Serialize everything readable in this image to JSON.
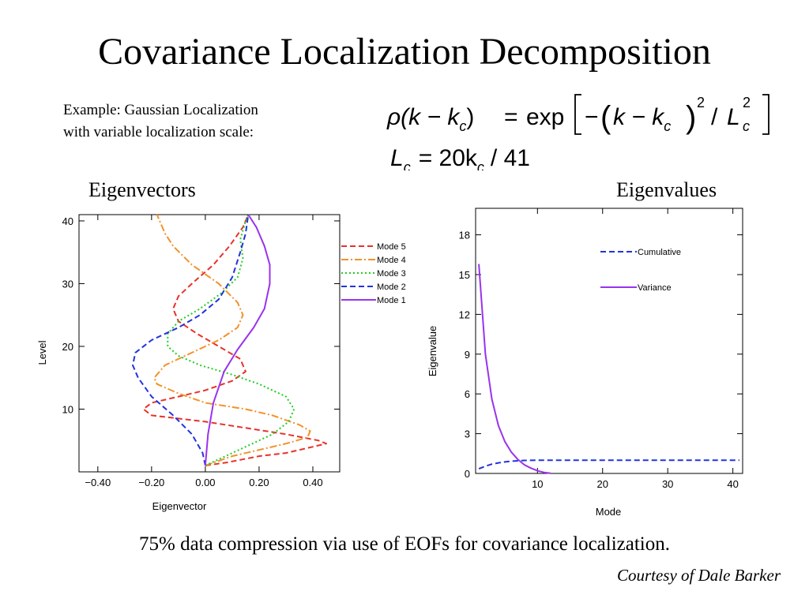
{
  "slide": {
    "title": "Covariance Localization Decomposition",
    "example_line1": "Example: Gaussian Localization",
    "example_line2": "with variable localization scale:",
    "label_left": "Eigenvectors",
    "label_right": "Eigenvalues",
    "caption": "75% data compression via use of EOFs for covariance localization.",
    "credit": "Courtesy of Dale Barker"
  },
  "formula": {
    "lhs": "ρ(k − k",
    "lhs_sub": "c",
    "lhs_close": ")",
    "eq": "=",
    "exp": "exp",
    "inner_minus": "−",
    "inner_k": "k − k",
    "inner_sub": "c",
    "sq": "2",
    "slash": "/",
    "L": "L",
    "L_sub": "c",
    "L_sup": "2",
    "line2": "L",
    "line2_sub": "c",
    "line2_rhs": "= 20k",
    "line2_sub2": "c",
    "line2_tail": "/ 41"
  },
  "chart_data": [
    {
      "type": "line",
      "xlabel": "Eigenvector",
      "ylabel": "Level",
      "xlim": [
        -0.47,
        0.5
      ],
      "ylim": [
        0,
        41
      ],
      "x_ticks": [
        -0.4,
        -0.2,
        0.0,
        0.2,
        0.4
      ],
      "x_tick_labels": [
        "−0.40",
        "−0.20",
        "0.00",
        "0.20",
        "0.40"
      ],
      "y_ticks": [
        10,
        20,
        30,
        40
      ],
      "y_tick_labels": [
        "10",
        "20",
        "30",
        "40"
      ],
      "legend_position": "right",
      "series": [
        {
          "name": "Mode 5",
          "color": "#e8312a",
          "dash": "7,4",
          "points": [
            [
              0,
              1
            ],
            [
              0.08,
              1.5
            ],
            [
              0.2,
              2.5
            ],
            [
              0.3,
              3
            ],
            [
              0.38,
              3.8
            ],
            [
              0.45,
              4.5
            ],
            [
              0.42,
              5
            ],
            [
              0.3,
              6
            ],
            [
              0.15,
              7
            ],
            [
              0.0,
              8
            ],
            [
              -0.1,
              8.5
            ],
            [
              -0.2,
              9
            ],
            [
              -0.23,
              10
            ],
            [
              -0.2,
              11
            ],
            [
              -0.1,
              12
            ],
            [
              0.0,
              13
            ],
            [
              0.1,
              14.5
            ],
            [
              0.15,
              16
            ],
            [
              0.13,
              18
            ],
            [
              0.05,
              20
            ],
            [
              -0.03,
              22
            ],
            [
              -0.1,
              24
            ],
            [
              -0.12,
              26
            ],
            [
              -0.1,
              28
            ],
            [
              -0.05,
              30
            ],
            [
              0.03,
              33
            ],
            [
              0.09,
              36
            ],
            [
              0.14,
              39
            ],
            [
              0.16,
              41
            ]
          ]
        },
        {
          "name": "Mode 4",
          "color": "#f2922a",
          "dash": "9,3,2,3",
          "points": [
            [
              0,
              1
            ],
            [
              0.1,
              2.5
            ],
            [
              0.2,
              3.5
            ],
            [
              0.3,
              4.5
            ],
            [
              0.38,
              5.5
            ],
            [
              0.39,
              6.5
            ],
            [
              0.35,
              7.5
            ],
            [
              0.25,
              9
            ],
            [
              0.15,
              10
            ],
            [
              0.0,
              11
            ],
            [
              -0.1,
              12.5
            ],
            [
              -0.18,
              14
            ],
            [
              -0.19,
              15
            ],
            [
              -0.15,
              17
            ],
            [
              -0.05,
              19
            ],
            [
              0.05,
              21
            ],
            [
              0.12,
              23
            ],
            [
              0.14,
              25
            ],
            [
              0.12,
              27
            ],
            [
              0.05,
              30
            ],
            [
              -0.05,
              33
            ],
            [
              -0.12,
              36
            ],
            [
              -0.15,
              38
            ],
            [
              -0.17,
              40
            ],
            [
              -0.18,
              41
            ]
          ]
        },
        {
          "name": "Mode 3",
          "color": "#22cc22",
          "dash": "2,3",
          "points": [
            [
              0,
              1
            ],
            [
              0.05,
              2
            ],
            [
              0.15,
              4
            ],
            [
              0.25,
              6
            ],
            [
              0.31,
              8
            ],
            [
              0.33,
              10
            ],
            [
              0.3,
              12
            ],
            [
              0.2,
              14
            ],
            [
              0.1,
              15.5
            ],
            [
              -0.02,
              17
            ],
            [
              -0.1,
              18.5
            ],
            [
              -0.14,
              20
            ],
            [
              -0.14,
              22
            ],
            [
              -0.1,
              24
            ],
            [
              -0.02,
              26
            ],
            [
              0.06,
              28.5
            ],
            [
              0.12,
              31
            ],
            [
              0.14,
              34
            ],
            [
              0.13,
              37
            ],
            [
              0.15,
              40
            ],
            [
              0.16,
              41
            ]
          ]
        },
        {
          "name": "Mode 2",
          "color": "#2233dd",
          "dash": "7,4",
          "points": [
            [
              0,
              1
            ],
            [
              -0.01,
              3
            ],
            [
              -0.05,
              6
            ],
            [
              -0.12,
              9
            ],
            [
              -0.2,
              12
            ],
            [
              -0.25,
              15
            ],
            [
              -0.27,
              17
            ],
            [
              -0.26,
              19
            ],
            [
              -0.2,
              21
            ],
            [
              -0.1,
              23
            ],
            [
              -0.02,
              25
            ],
            [
              0.05,
              27.5
            ],
            [
              0.1,
              31
            ],
            [
              0.13,
              35
            ],
            [
              0.15,
              38
            ],
            [
              0.16,
              41
            ]
          ]
        },
        {
          "name": "Mode 1",
          "color": "#9933ee",
          "dash": "",
          "points": [
            [
              0,
              1
            ],
            [
              0.01,
              6
            ],
            [
              0.03,
              11
            ],
            [
              0.07,
              16
            ],
            [
              0.12,
              19.5
            ],
            [
              0.18,
              23
            ],
            [
              0.22,
              26
            ],
            [
              0.24,
              30
            ],
            [
              0.24,
              33
            ],
            [
              0.22,
              36
            ],
            [
              0.19,
              39
            ],
            [
              0.16,
              41
            ]
          ]
        }
      ]
    },
    {
      "type": "line",
      "xlabel": "Mode",
      "ylabel": "Eigenvalue",
      "xlim": [
        0.5,
        41.5
      ],
      "ylim": [
        0,
        20
      ],
      "x_ticks": [
        10,
        20,
        30,
        40
      ],
      "x_tick_labels": [
        "10",
        "20",
        "30",
        "40"
      ],
      "y_ticks": [
        0,
        3,
        6,
        9,
        12,
        15,
        18
      ],
      "y_tick_labels": [
        "0",
        "3",
        "6",
        "9",
        "12",
        "15",
        "18"
      ],
      "legend_position": "top-right",
      "series": [
        {
          "name": "Cumulative",
          "color": "#2233dd",
          "dash": "7,4",
          "points": [
            [
              1,
              0.35
            ],
            [
              2,
              0.55
            ],
            [
              3,
              0.7
            ],
            [
              4,
              0.8
            ],
            [
              5,
              0.87
            ],
            [
              6,
              0.92
            ],
            [
              7,
              0.95
            ],
            [
              8,
              0.98
            ],
            [
              9,
              0.99
            ],
            [
              10,
              1.0
            ],
            [
              12,
              1.0
            ],
            [
              41,
              1.0
            ]
          ]
        },
        {
          "name": "Variance",
          "color": "#9933ee",
          "dash": "",
          "points": [
            [
              1,
              15.8
            ],
            [
              2,
              9
            ],
            [
              3,
              5.6
            ],
            [
              4,
              3.6
            ],
            [
              5,
              2.4
            ],
            [
              6,
              1.6
            ],
            [
              7,
              1.05
            ],
            [
              8,
              0.65
            ],
            [
              9,
              0.4
            ],
            [
              10,
              0.2
            ],
            [
              11,
              0.08
            ],
            [
              12,
              0.02
            ]
          ]
        }
      ]
    }
  ]
}
